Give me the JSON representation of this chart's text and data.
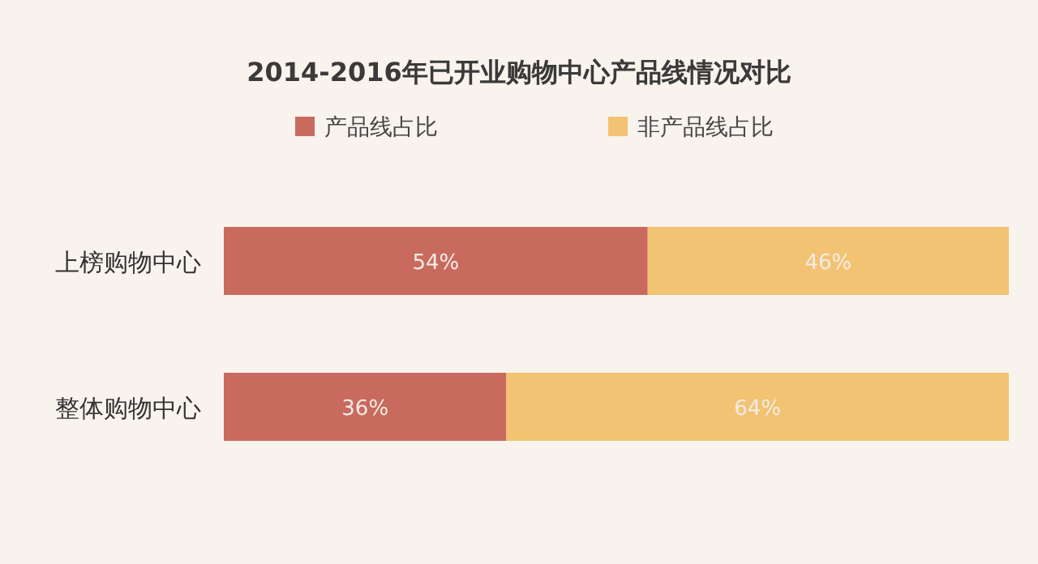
{
  "chart_data": {
    "type": "bar",
    "orientation": "horizontal",
    "stacked": true,
    "title": "2014-2016年已开业购物中心产品线情况对比",
    "categories": [
      "上榜购物中心",
      "整体购物中心"
    ],
    "series": [
      {
        "name": "产品线占比",
        "color": "#c96a5f",
        "values": [
          54,
          36
        ],
        "value_labels": [
          "54%",
          "36%"
        ]
      },
      {
        "name": "非产品线占比",
        "color": "#f1c373",
        "values": [
          46,
          64
        ],
        "value_labels": [
          "46%",
          "64%"
        ]
      }
    ],
    "legend": "top"
  }
}
